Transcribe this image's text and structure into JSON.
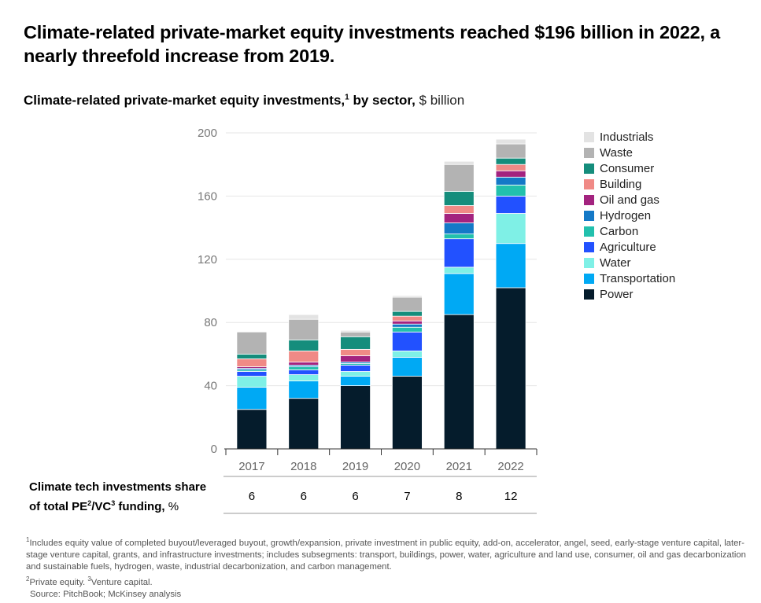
{
  "headline": "Climate-related private-market equity investments reached $196 billion in 2022, a nearly threefold increase from 2019.",
  "subtitle": {
    "main": "Climate-related private-market equity investments,",
    "sup": "1",
    "mid": " by sector,",
    "unit": " $ billion"
  },
  "colors": {
    "Industrials": "#e3e3e3",
    "Waste": "#b3b3b3",
    "Consumer": "#158d7c",
    "Building": "#f08a86",
    "Oil and gas": "#a3237f",
    "Hydrogen": "#1479c7",
    "Carbon": "#22c0ad",
    "Agriculture": "#2251ff",
    "Water": "#7ff0e6",
    "Transportation": "#00a9f4",
    "Power": "#051c2c"
  },
  "chart_data": {
    "type": "bar",
    "stacked": true,
    "categories": [
      "2017",
      "2018",
      "2019",
      "2020",
      "2021",
      "2022"
    ],
    "ylim": [
      0,
      200
    ],
    "yticks": [
      0,
      40,
      80,
      120,
      160,
      200
    ],
    "grid": true,
    "legend_position": "right",
    "legend_order": [
      "Industrials",
      "Waste",
      "Consumer",
      "Building",
      "Oil and gas",
      "Hydrogen",
      "Carbon",
      "Agriculture",
      "Water",
      "Transportation",
      "Power"
    ],
    "series": [
      {
        "name": "Power",
        "values": [
          25,
          32,
          40,
          46,
          85,
          102
        ]
      },
      {
        "name": "Transportation",
        "values": [
          14,
          11,
          6,
          12,
          26,
          28
        ]
      },
      {
        "name": "Water",
        "values": [
          7,
          4,
          3,
          4,
          4,
          19
        ]
      },
      {
        "name": "Agriculture",
        "values": [
          3,
          3,
          4,
          12,
          18,
          11
        ]
      },
      {
        "name": "Carbon",
        "values": [
          1,
          2,
          1,
          3,
          3,
          7
        ]
      },
      {
        "name": "Hydrogen",
        "values": [
          1,
          1,
          1,
          2,
          7,
          5
        ]
      },
      {
        "name": "Oil and gas",
        "values": [
          1,
          2,
          4,
          2,
          6,
          4
        ]
      },
      {
        "name": "Building",
        "values": [
          5,
          7,
          4,
          3,
          5,
          4
        ]
      },
      {
        "name": "Consumer",
        "values": [
          3,
          7,
          8,
          3,
          9,
          4
        ]
      },
      {
        "name": "Waste",
        "values": [
          14,
          13,
          3,
          9,
          17,
          9
        ]
      },
      {
        "name": "Industrials",
        "values": [
          0,
          3,
          1,
          1,
          2,
          3
        ]
      }
    ]
  },
  "share": {
    "label_main": "Climate tech investments share",
    "label_line2": "of total PE",
    "sup2": "2",
    "slash": "/VC",
    "sup3": "3",
    "label_end": " funding,",
    "unit": " %",
    "values": [
      "6",
      "6",
      "6",
      "7",
      "8",
      "12"
    ]
  },
  "footnotes": {
    "note1_sup": "1",
    "note1": "Includes equity value of completed buyout/leveraged buyout, growth/expansion, private investment in public equity, add-on, accelerator, angel, seed, early-stage venture capital, later-stage venture capital, grants, and infrastructure investments; includes subsegments: transport, buildings, power, water, agriculture and land use, consumer, oil and gas decarbonization and sustainable fuels, hydrogen, waste, industrial decarbonization, and carbon management.",
    "note2_sup": "2",
    "note2": "Private equity. ",
    "note3_sup": "3",
    "note3": "Venture capital.",
    "source": "Source: PitchBook; McKinsey analysis"
  }
}
